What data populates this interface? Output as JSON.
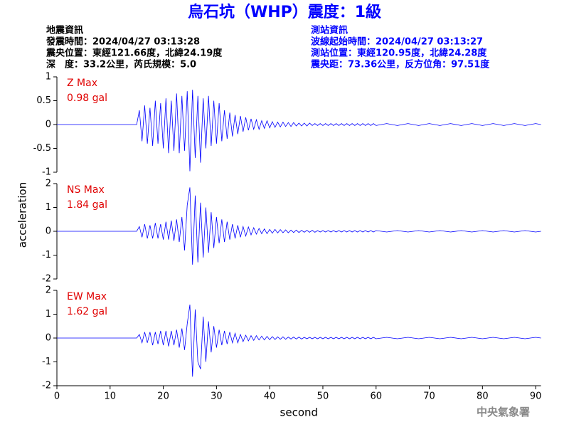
{
  "header": {
    "title": "烏石坑（WHP）震度：1級",
    "left": [
      "地震資訊",
      "發震時間：2024/04/27 03:13:28",
      "震央位置：東經121.66度，北緯24.19度",
      "深　度：33.2公里，芮氏規模：5.0"
    ],
    "right": [
      "測站資訊",
      "波線起始時間：2024/04/27 03:13:27",
      "測站位置：東經120.95度，北緯24.28度",
      "震央距：73.36公里，反方位角：97.51度"
    ]
  },
  "footer": "中央氣象署",
  "chart_data": [
    {
      "type": "line",
      "annotation": [
        "Z Max",
        "0.98 gal"
      ],
      "color": "#0000ff",
      "xlim": [
        0,
        91
      ],
      "ylim": [
        -1,
        1
      ],
      "yticks": [
        -1,
        -0.5,
        0,
        0.5,
        1
      ],
      "x": [
        0,
        15,
        15.5,
        16,
        16.5,
        17,
        17.5,
        18,
        18.5,
        19,
        19.5,
        20,
        20.5,
        21,
        21.5,
        22,
        22.5,
        23,
        23.5,
        24,
        24.5,
        25,
        25.5,
        26,
        26.5,
        27,
        27.5,
        28,
        28.5,
        29,
        29.5,
        30,
        30.5,
        31,
        31.5,
        32,
        32.5,
        33,
        33.5,
        34,
        34.5,
        35,
        35.5,
        36,
        36.5,
        37,
        37.5,
        38,
        38.5,
        39,
        39.5,
        40,
        40.5,
        41,
        41.5,
        42,
        42.5,
        43,
        43.5,
        44,
        44.5,
        45,
        45.5,
        46,
        46.5,
        47,
        47.5,
        48,
        48.5,
        49,
        49.5,
        50,
        50.5,
        51,
        51.5,
        52,
        52.5,
        53,
        53.5,
        54,
        54.5,
        55,
        55.5,
        56,
        56.5,
        57,
        57.5,
        58,
        58.5,
        59,
        59.5,
        60,
        62,
        64,
        66,
        68,
        70,
        72,
        74,
        76,
        78,
        80,
        82,
        84,
        86,
        88,
        90,
        91
      ],
      "values": [
        0,
        0,
        0.3,
        -0.35,
        0.4,
        -0.4,
        0.35,
        -0.45,
        0.5,
        -0.4,
        0.45,
        -0.5,
        0.55,
        -0.6,
        0.5,
        -0.55,
        0.65,
        -0.6,
        0.6,
        -0.55,
        0.7,
        -0.98,
        0.73,
        -0.7,
        0.6,
        -0.8,
        0.55,
        -0.5,
        0.6,
        -0.45,
        0.5,
        -0.4,
        0.45,
        -0.35,
        0.3,
        -0.3,
        0.25,
        -0.25,
        0.2,
        -0.2,
        0.18,
        -0.15,
        0.15,
        -0.12,
        0.12,
        -0.1,
        0.1,
        -0.1,
        0.08,
        -0.08,
        0.08,
        -0.07,
        0.06,
        -0.06,
        0.05,
        -0.05,
        0.05,
        -0.04,
        0.04,
        -0.04,
        0.04,
        -0.03,
        0.03,
        -0.03,
        0.03,
        -0.03,
        0.03,
        -0.02,
        0.02,
        -0.02,
        0.02,
        -0.02,
        0.02,
        -0.02,
        0.02,
        -0.02,
        0.02,
        -0.02,
        0.02,
        -0.02,
        0.02,
        -0.02,
        0.02,
        -0.02,
        0.02,
        -0.02,
        0.02,
        -0.02,
        0.02,
        -0.02,
        0.02,
        -0.02,
        0.02,
        -0.02,
        0.02,
        -0.02,
        0.02,
        -0.02,
        0.02,
        -0.02,
        0.02,
        -0.02,
        0.02,
        -0.02,
        0.02,
        -0.02,
        0.02,
        0
      ]
    },
    {
      "type": "line",
      "annotation": [
        "NS Max",
        "1.84 gal"
      ],
      "ylabel": "acceleration",
      "color": "#0000ff",
      "xlim": [
        0,
        91
      ],
      "ylim": [
        -2,
        2
      ],
      "yticks": [
        -2,
        -1,
        0,
        1,
        2
      ],
      "x": [
        0,
        15,
        15.5,
        16,
        16.5,
        17,
        17.5,
        18,
        18.5,
        19,
        19.5,
        20,
        20.5,
        21,
        21.5,
        22,
        22.5,
        23,
        23.5,
        24,
        24.5,
        25,
        25.5,
        26,
        26.5,
        27,
        27.5,
        28,
        28.5,
        29,
        29.5,
        30,
        30.5,
        31,
        31.5,
        32,
        32.5,
        33,
        33.5,
        34,
        34.5,
        35,
        35.5,
        36,
        36.5,
        37,
        37.5,
        38,
        38.5,
        39,
        39.5,
        40,
        40.5,
        41,
        41.5,
        42,
        42.5,
        43,
        43.5,
        44,
        44.5,
        45,
        45.5,
        46,
        46.5,
        47,
        47.5,
        48,
        48.5,
        49,
        49.5,
        50,
        50.5,
        51,
        51.5,
        52,
        52.5,
        53,
        53.5,
        54,
        54.5,
        55,
        55.5,
        56,
        56.5,
        57,
        57.5,
        58,
        58.5,
        59,
        59.5,
        60,
        62,
        64,
        66,
        68,
        70,
        72,
        74,
        76,
        78,
        80,
        82,
        84,
        86,
        88,
        90,
        91
      ],
      "values": [
        0,
        0,
        0.2,
        -0.25,
        0.3,
        -0.3,
        0.25,
        -0.3,
        0.35,
        -0.3,
        0.3,
        -0.35,
        0.4,
        -0.35,
        0.45,
        -0.4,
        0.5,
        -0.45,
        0.6,
        -0.8,
        1.1,
        1.84,
        -1.4,
        1.5,
        -1.3,
        1.2,
        -1.1,
        1.0,
        -0.9,
        0.8,
        -0.7,
        0.6,
        -0.5,
        0.5,
        -0.45,
        0.4,
        -0.35,
        0.3,
        -0.3,
        0.25,
        -0.25,
        0.2,
        -0.2,
        0.18,
        -0.15,
        0.15,
        -0.12,
        0.12,
        -0.1,
        0.1,
        -0.1,
        0.08,
        -0.08,
        0.08,
        -0.07,
        0.07,
        -0.06,
        0.06,
        -0.06,
        0.05,
        -0.05,
        0.05,
        -0.05,
        0.04,
        -0.04,
        0.04,
        -0.04,
        0.04,
        -0.04,
        0.03,
        -0.03,
        0.03,
        -0.03,
        0.03,
        -0.03,
        0.03,
        -0.03,
        0.03,
        -0.03,
        0.03,
        -0.03,
        0.03,
        -0.03,
        0.03,
        -0.03,
        0.03,
        -0.03,
        0.03,
        -0.03,
        0.03,
        -0.03,
        0.03,
        -0.03,
        0.03,
        -0.03,
        0.03,
        -0.03,
        0.03,
        -0.03,
        0.03,
        -0.03,
        0.03,
        -0.03,
        0.03,
        -0.03,
        0.03,
        -0.03,
        0
      ]
    },
    {
      "type": "line",
      "annotation": [
        "EW Max",
        "1.62 gal"
      ],
      "xlabel": "second",
      "color": "#0000ff",
      "xlim": [
        0,
        91
      ],
      "ylim": [
        -2,
        2
      ],
      "yticks": [
        -2,
        -1,
        0,
        1,
        2
      ],
      "xticks": [
        0,
        10,
        20,
        30,
        40,
        50,
        60,
        70,
        80,
        90
      ],
      "x": [
        0,
        15,
        15.5,
        16,
        16.5,
        17,
        17.5,
        18,
        18.5,
        19,
        19.5,
        20,
        20.5,
        21,
        21.5,
        22,
        22.5,
        23,
        23.5,
        24,
        24.5,
        25,
        25.5,
        26,
        26.5,
        27,
        27.5,
        28,
        28.5,
        29,
        29.5,
        30,
        30.5,
        31,
        31.5,
        32,
        32.5,
        33,
        33.5,
        34,
        34.5,
        35,
        35.5,
        36,
        36.5,
        37,
        37.5,
        38,
        38.5,
        39,
        39.5,
        40,
        40.5,
        41,
        41.5,
        42,
        42.5,
        43,
        43.5,
        44,
        44.5,
        45,
        45.5,
        46,
        46.5,
        47,
        47.5,
        48,
        48.5,
        49,
        49.5,
        50,
        50.5,
        51,
        51.5,
        52,
        52.5,
        53,
        53.5,
        54,
        54.5,
        55,
        55.5,
        56,
        56.5,
        57,
        57.5,
        58,
        58.5,
        59,
        59.5,
        60,
        62,
        64,
        66,
        68,
        70,
        72,
        74,
        76,
        78,
        80,
        82,
        84,
        86,
        88,
        90,
        91
      ],
      "values": [
        0,
        0,
        0.15,
        -0.2,
        0.25,
        -0.2,
        0.25,
        -0.3,
        0.25,
        -0.25,
        0.3,
        -0.3,
        0.3,
        -0.35,
        0.3,
        -0.3,
        0.35,
        -0.4,
        0.4,
        -0.5,
        0.6,
        1.4,
        -1.62,
        1.2,
        -1.0,
        -1.3,
        0.9,
        -1.0,
        0.7,
        -0.6,
        0.5,
        -0.4,
        0.35,
        -0.3,
        0.3,
        -0.25,
        0.25,
        -0.2,
        0.2,
        -0.2,
        0.15,
        -0.15,
        0.12,
        -0.12,
        0.1,
        -0.1,
        0.1,
        -0.08,
        0.08,
        -0.08,
        0.07,
        -0.07,
        0.06,
        -0.06,
        0.05,
        -0.05,
        0.05,
        -0.05,
        0.04,
        -0.04,
        0.04,
        -0.04,
        0.04,
        -0.04,
        0.03,
        -0.03,
        0.03,
        -0.03,
        0.03,
        -0.03,
        0.03,
        -0.03,
        0.03,
        -0.03,
        0.03,
        -0.03,
        0.03,
        -0.03,
        0.03,
        -0.03,
        0.03,
        -0.03,
        0.03,
        -0.03,
        0.03,
        -0.03,
        0.03,
        -0.03,
        0.03,
        -0.03,
        0.03,
        -0.03,
        0.03,
        -0.03,
        0.03,
        -0.03,
        0.03,
        -0.03,
        0.03,
        -0.03,
        0.03,
        -0.03,
        0.03,
        -0.03,
        0.03,
        -0.03,
        0.03,
        0
      ]
    }
  ]
}
